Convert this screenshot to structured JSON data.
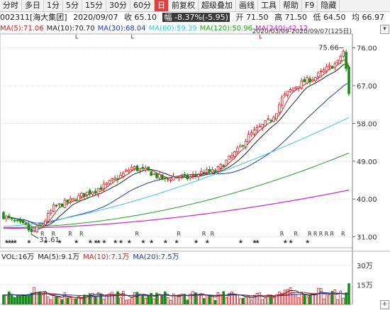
{
  "toolbar": {
    "items": [
      {
        "label": "分时",
        "active": false
      },
      {
        "label": "多日",
        "active": false
      },
      {
        "label": "1分",
        "active": false
      },
      {
        "label": "5分",
        "active": false
      },
      {
        "label": "15分",
        "active": false
      },
      {
        "label": "30分",
        "active": false
      },
      {
        "label": "60分",
        "active": false
      },
      {
        "label": "日",
        "active": true
      },
      {
        "label": "前复权",
        "active": false
      },
      {
        "label": "超级叠加",
        "active": false
      },
      {
        "label": "画线",
        "active": false
      },
      {
        "label": "工具",
        "active": false
      },
      {
        "label": "帮助",
        "active": false
      },
      {
        "label": "F9",
        "active": false
      },
      {
        "label": "隐藏",
        "active": false
      }
    ]
  },
  "quote": {
    "name": "002311[海大集团]",
    "date": "2020/09/07",
    "close": "收 65.10",
    "change": "幅 -8.37%(-5.95)",
    "open": "开 71.50",
    "high": "高 71.50",
    "low": "低 64.50",
    "avg": "均 66.97"
  },
  "ma_legend": [
    {
      "text": "MA(5):71.06",
      "color": "#d02020"
    },
    {
      "text": "MA(10):70.70",
      "color": "#202020"
    },
    {
      "text": "MA(30):68.04",
      "color": "#1e3ca8"
    },
    {
      "text": "MA(60):59.39",
      "color": "#38c8e8"
    },
    {
      "text": "MA(120):50.96",
      "color": "#20a020"
    },
    {
      "text": "MA(240):42.12",
      "color": "#d020d0"
    }
  ],
  "range_text": "2020/03/09-2020/09/07(125日)",
  "vol_legend": [
    {
      "text": "VOL:16万",
      "color": "#202020"
    },
    {
      "text": "MA(5):9.1万",
      "color": "#202020"
    },
    {
      "text": "MA(10):7.1万",
      "color": "#d02020"
    },
    {
      "text": "MA(20):7.5万",
      "color": "#1e3ca8"
    }
  ],
  "annotations": {
    "high_label": "75.66",
    "low_label": "31.61"
  },
  "signals": {
    "r_text": "R",
    "star_text": "★"
  },
  "chart_data": {
    "type": "candlestick",
    "title": "002311[海大集团]",
    "price_axis": {
      "ticks": [
        "76.00",
        "67.00",
        "58.00",
        "49.00",
        "40.00",
        "31.00"
      ],
      "values": [
        76,
        67,
        58,
        49,
        40,
        31
      ],
      "range": [
        28.4,
        79.3
      ]
    },
    "volume_axis": {
      "ticks": [
        "30万",
        "15万"
      ],
      "values": [
        30,
        15
      ],
      "range": [
        0,
        31
      ]
    },
    "grid": true,
    "colors": {
      "up": "#e02020",
      "down": "#109010"
    },
    "high_point": 75.66,
    "low_point": 31.61,
    "last_close": 65.1
  }
}
